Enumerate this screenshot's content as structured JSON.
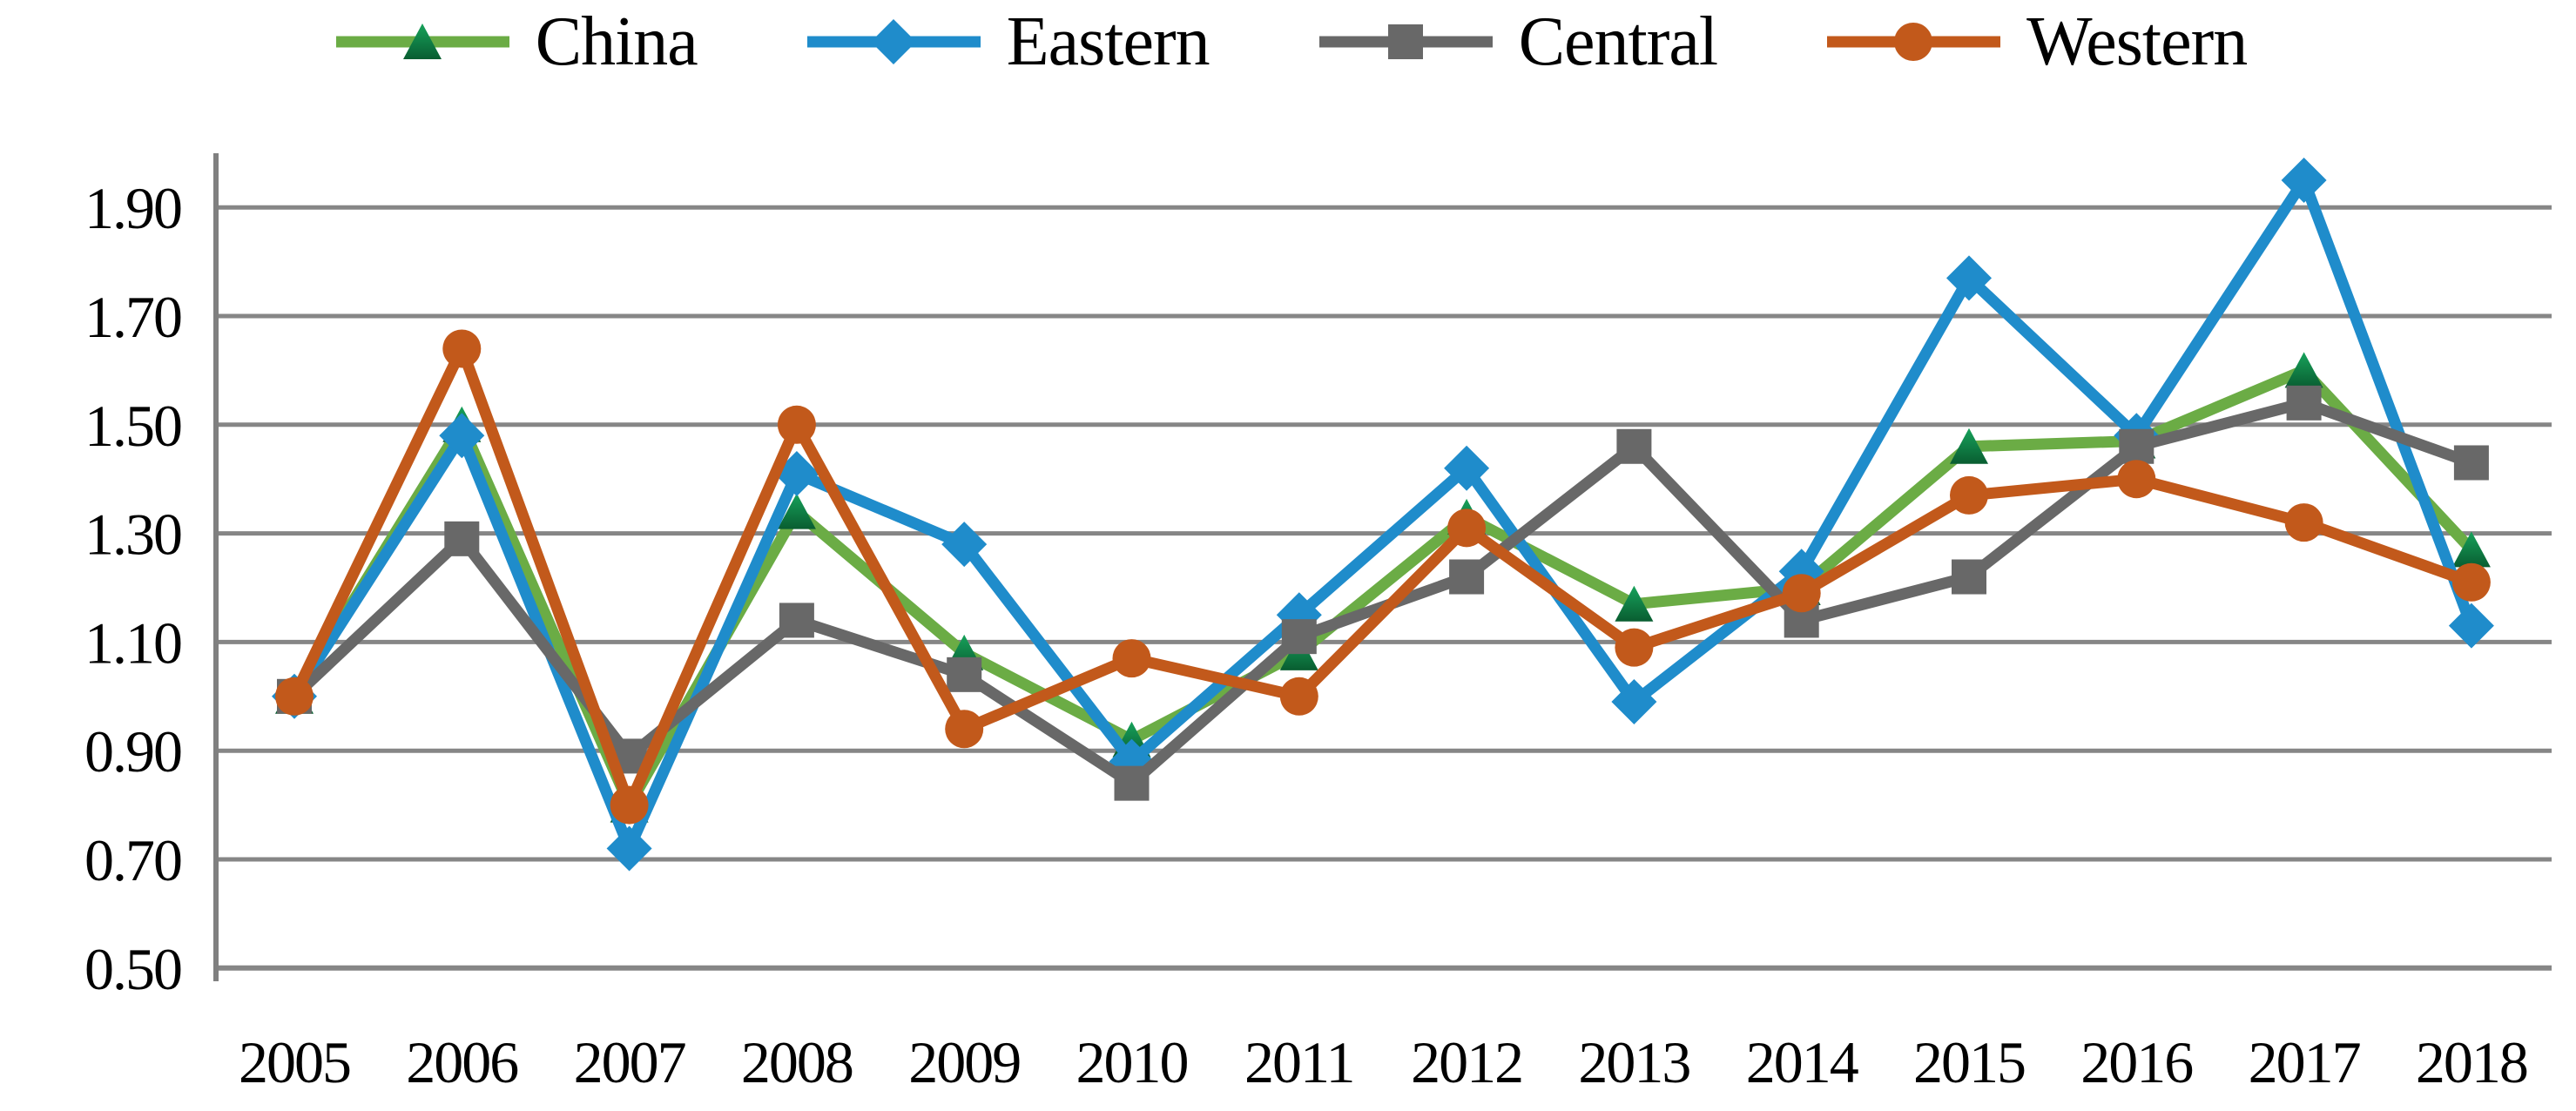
{
  "chart_data": {
    "type": "line",
    "title": "",
    "xlabel": "",
    "ylabel": "",
    "categories": [
      "2005",
      "2006",
      "2007",
      "2008",
      "2009",
      "2010",
      "2011",
      "2012",
      "2013",
      "2014",
      "2015",
      "2016",
      "2017",
      "2018"
    ],
    "series": [
      {
        "name": "China",
        "color": "#6BAC45",
        "marker": "triangle",
        "marker_fill_top": "#17A25B",
        "marker_fill_bottom": "#095D31",
        "values": [
          1.0,
          1.5,
          0.8,
          1.34,
          1.08,
          0.92,
          1.08,
          1.33,
          1.17,
          1.2,
          1.46,
          1.47,
          1.6,
          1.27
        ]
      },
      {
        "name": "Eastern",
        "color": "#1F8CCB",
        "marker": "diamond",
        "values": [
          1.0,
          1.48,
          0.72,
          1.41,
          1.28,
          0.88,
          1.15,
          1.42,
          0.99,
          1.23,
          1.77,
          1.48,
          1.95,
          1.13
        ]
      },
      {
        "name": "Central",
        "color": "#686868",
        "marker": "square",
        "values": [
          1.0,
          1.29,
          0.89,
          1.14,
          1.04,
          0.84,
          1.11,
          1.22,
          1.46,
          1.14,
          1.22,
          1.46,
          1.54,
          1.43
        ]
      },
      {
        "name": "Western",
        "color": "#C2591B",
        "marker": "circle",
        "values": [
          1.0,
          1.64,
          0.8,
          1.5,
          0.94,
          1.07,
          1.0,
          1.31,
          1.09,
          1.19,
          1.37,
          1.4,
          1.32,
          1.21
        ]
      }
    ],
    "y_ticks": [
      "0.50",
      "0.70",
      "0.90",
      "1.10",
      "1.30",
      "1.50",
      "1.70",
      "1.90"
    ],
    "ylim": [
      0.5,
      2.0
    ],
    "ytick_step": 0.2,
    "grid": true,
    "legend_position": "top",
    "colors": {
      "grid_line": "#868686",
      "axis_line": "#808080",
      "tick_label": "#000000",
      "legend_text": "#000000"
    }
  }
}
